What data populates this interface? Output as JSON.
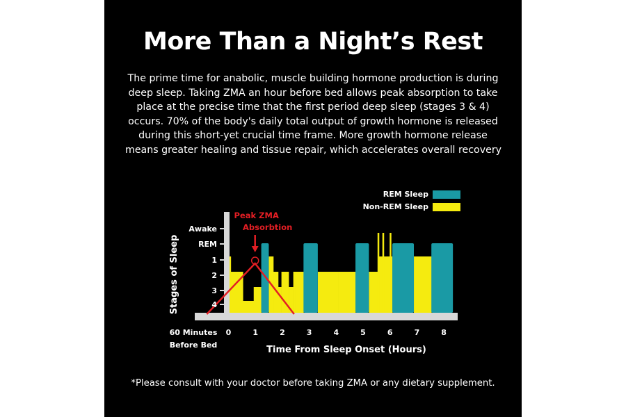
{
  "title": "More Than a Night’s Rest",
  "paragraph_lines": [
    "The prime time for anabolic, muscle building hormone production is during",
    "deep sleep. Taking ZMA an hour before bed allows peak absorption to take",
    "place at the precise time that the first period deep sleep (stages 3 & 4)",
    "occurs. 70% of the body's daily total output of growth hormone is released",
    "during this short-yet crucial time frame. More growth hormone release",
    "means greater healing and tissue repair, which accelerates overall recovery"
  ],
  "disclaimer": "*Please consult with your doctor before taking ZMA or any dietary supplement.",
  "chart_data": {
    "type": "bar",
    "xlabel": "Time From Sleep Onset (Hours)",
    "ylabel": "Stages of Sleep",
    "x_ticks": [
      "0",
      "1",
      "2",
      "3",
      "4",
      "5",
      "6",
      "7",
      "8"
    ],
    "x_extra_label": [
      "60 Minutes",
      "Before Bed"
    ],
    "y_ticks": [
      "Awake",
      "REM",
      "1",
      "2",
      "3",
      "4"
    ],
    "legend": [
      {
        "label": "REM Sleep",
        "color": "#1a9aa5"
      },
      {
        "label": "Non-REM Sleep",
        "color": "#f5eb0f"
      }
    ],
    "legend_position": "top-right",
    "annotation": {
      "lines": [
        "Peak ZMA",
        "Absorbtion"
      ],
      "color": "#e31e24",
      "x": 1
    },
    "absorption_curve": {
      "x": [
        -1,
        1,
        2.4
      ],
      "y": [
        "baseline",
        "1",
        "baseline"
      ],
      "color": "#e31e24"
    },
    "rem_bars": [
      {
        "x0": 1.23,
        "x1": 1.51,
        "top": "REM"
      },
      {
        "x0": 2.8,
        "x1": 3.33,
        "top": "REM"
      },
      {
        "x0": 4.73,
        "x1": 5.23,
        "top": "REM"
      },
      {
        "x0": 6.1,
        "x1": 6.9,
        "top": "REM"
      },
      {
        "x0": 7.55,
        "x1": 8.35,
        "top": "REM"
      }
    ],
    "nonrem_segments": [
      {
        "x0": 0,
        "x1": 0.1,
        "stage": "1"
      },
      {
        "x0": 0.1,
        "x1": 0.23,
        "stage": "2"
      },
      {
        "x0": 0.23,
        "x1": 0.55,
        "stage": "2"
      },
      {
        "x0": 0.55,
        "x1": 0.95,
        "stage": "4"
      },
      {
        "x0": 0.95,
        "x1": 1.23,
        "stage": "3"
      },
      {
        "x0": 1.51,
        "x1": 1.68,
        "stage": "1"
      },
      {
        "x0": 1.68,
        "x1": 1.86,
        "stage": "2"
      },
      {
        "x0": 1.86,
        "x1": 1.98,
        "stage": "3"
      },
      {
        "x0": 1.98,
        "x1": 2.25,
        "stage": "2"
      },
      {
        "x0": 2.25,
        "x1": 2.42,
        "stage": "3"
      },
      {
        "x0": 2.42,
        "x1": 2.52,
        "stage": "2"
      },
      {
        "x0": 2.52,
        "x1": 2.8,
        "stage": "2"
      },
      {
        "x0": 3.33,
        "x1": 4.1,
        "stage": "2"
      },
      {
        "x0": 4.1,
        "x1": 4.73,
        "stage": "2"
      },
      {
        "x0": 5.23,
        "x1": 5.6,
        "stage": "2"
      },
      {
        "x0": 5.6,
        "x1": 6.1,
        "stage": "1"
      },
      {
        "x0": 6.9,
        "x1": 7.55,
        "stage": "1"
      }
    ]
  }
}
